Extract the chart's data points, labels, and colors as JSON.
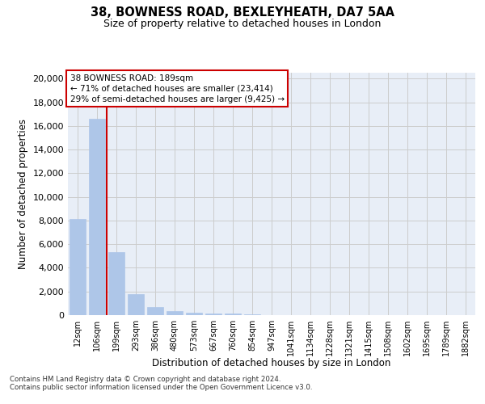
{
  "title1": "38, BOWNESS ROAD, BEXLEYHEATH, DA7 5AA",
  "title2": "Size of property relative to detached houses in London",
  "xlabel": "Distribution of detached houses by size in London",
  "ylabel": "Number of detached properties",
  "categories": [
    "12sqm",
    "106sqm",
    "199sqm",
    "293sqm",
    "386sqm",
    "480sqm",
    "573sqm",
    "667sqm",
    "760sqm",
    "854sqm",
    "947sqm",
    "1041sqm",
    "1134sqm",
    "1228sqm",
    "1321sqm",
    "1415sqm",
    "1508sqm",
    "1602sqm",
    "1695sqm",
    "1789sqm",
    "1882sqm"
  ],
  "bar_heights": [
    8100,
    16600,
    5300,
    1800,
    650,
    330,
    200,
    150,
    150,
    100,
    0,
    0,
    0,
    0,
    0,
    0,
    0,
    0,
    0,
    0,
    0
  ],
  "bar_color": "#aec6e8",
  "bar_edge_color": "#aec6e8",
  "grid_color": "#cccccc",
  "vline_color": "#cc0000",
  "annotation_text_line1": "38 BOWNESS ROAD: 189sqm",
  "annotation_text_line2": "← 71% of detached houses are smaller (23,414)",
  "annotation_text_line3": "29% of semi-detached houses are larger (9,425) →",
  "box_edge_color": "#cc0000",
  "ylim": [
    0,
    20500
  ],
  "yticks": [
    0,
    2000,
    4000,
    6000,
    8000,
    10000,
    12000,
    14000,
    16000,
    18000,
    20000
  ],
  "footnote1": "Contains HM Land Registry data © Crown copyright and database right 2024.",
  "footnote2": "Contains public sector information licensed under the Open Government Licence v3.0.",
  "bg_color": "#e8eef7"
}
